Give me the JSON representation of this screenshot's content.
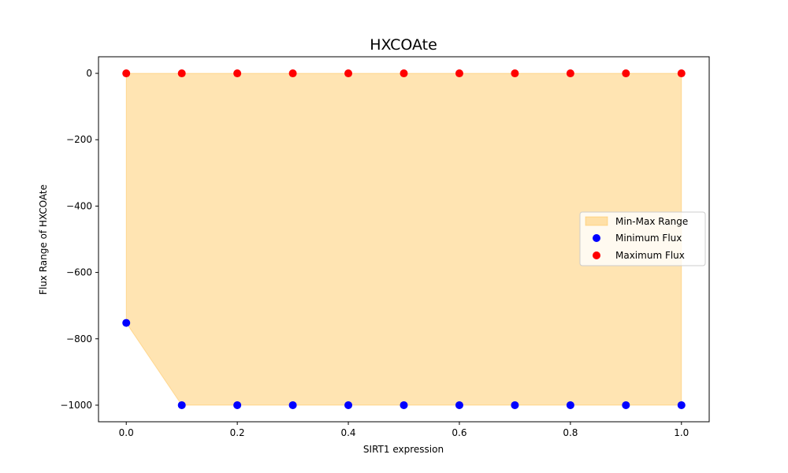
{
  "chart_data": {
    "type": "scatter",
    "title": "HXCOAte",
    "xlabel": "SIRT1 expression",
    "ylabel": "Flux Range of HXCOAte",
    "xlim": [
      -0.05,
      1.05
    ],
    "ylim": [
      -1050,
      50
    ],
    "x_ticks": [
      0.0,
      0.2,
      0.4,
      0.6,
      0.8,
      1.0
    ],
    "x_tick_labels": [
      "0.0",
      "0.2",
      "0.4",
      "0.6",
      "0.8",
      "1.0"
    ],
    "y_ticks": [
      0,
      -200,
      -400,
      -600,
      -800,
      -1000
    ],
    "y_tick_labels": [
      "0",
      "−200",
      "−400",
      "−600",
      "−800",
      "−1000"
    ],
    "x": [
      0.0,
      0.1,
      0.2,
      0.3,
      0.4,
      0.5,
      0.6,
      0.7,
      0.8,
      0.9,
      1.0
    ],
    "series": [
      {
        "name": "Min-Max Range",
        "kind": "fill_between",
        "lower": [
          -752,
          -1000,
          -1000,
          -1000,
          -1000,
          -1000,
          -1000,
          -1000,
          -1000,
          -1000,
          -1000
        ],
        "upper": [
          0,
          0,
          0,
          0,
          0,
          0,
          0,
          0,
          0,
          0,
          0
        ],
        "color": "#ffa500"
      },
      {
        "name": "Minimum Flux",
        "kind": "scatter",
        "values": [
          -752,
          -1000,
          -1000,
          -1000,
          -1000,
          -1000,
          -1000,
          -1000,
          -1000,
          -1000,
          -1000
        ],
        "color": "#0000ff"
      },
      {
        "name": "Maximum Flux",
        "kind": "scatter",
        "values": [
          0,
          0,
          0,
          0,
          0,
          0,
          0,
          0,
          0,
          0,
          0
        ],
        "color": "#ff0000"
      }
    ],
    "legend_position": "center-right",
    "grid": false
  }
}
